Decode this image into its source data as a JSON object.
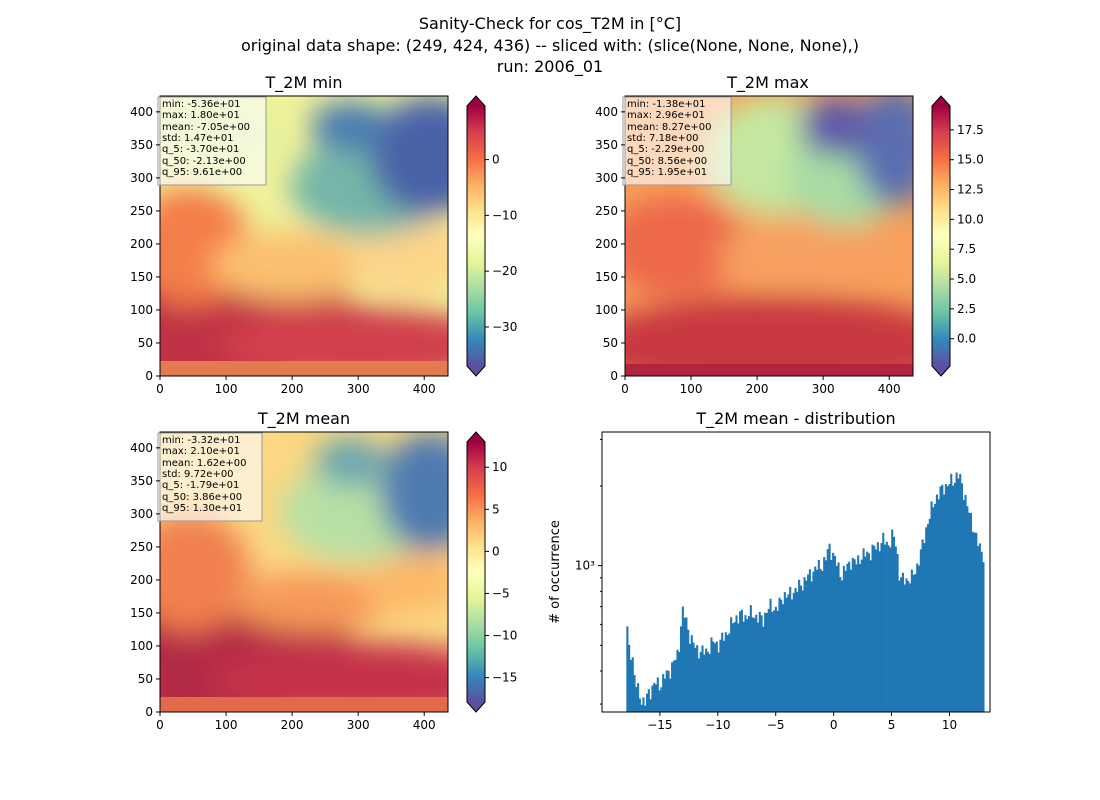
{
  "figure": {
    "title_lines": [
      "Sanity-Check for cos_T2M in [°C]",
      "original data shape: (249, 424, 436) -- sliced with: (slice(None, None, None),)",
      "run: 2006_01"
    ]
  },
  "chart_data": [
    {
      "type": "heatmap",
      "title": "T_2M min",
      "xlim": [
        0,
        436
      ],
      "ylim": [
        0,
        424
      ],
      "xticks": [
        "0",
        "100",
        "200",
        "300",
        "400"
      ],
      "yticks": [
        "0",
        "50",
        "100",
        "150",
        "200",
        "250",
        "300",
        "350",
        "400"
      ],
      "colorbar": {
        "cmap": "Spectral_r",
        "range": [
          -37.0,
          9.61
        ],
        "ticks": [
          "−30",
          "−20",
          "−10",
          "0"
        ],
        "extend": "both"
      },
      "stats": [
        "min: -5.36e+01",
        "max: 1.80e+01",
        "mean: -7.05e+00",
        "std: 1.47e+01",
        "q_5: -3.70e+01",
        "q_50: -2.13e+00",
        "q_95: 9.61e+00"
      ]
    },
    {
      "type": "heatmap",
      "title": "T_2M max",
      "xlim": [
        0,
        436
      ],
      "ylim": [
        0,
        424
      ],
      "xticks": [
        "0",
        "100",
        "200",
        "300",
        "400"
      ],
      "yticks": [
        "0",
        "50",
        "100",
        "150",
        "200",
        "250",
        "300",
        "350",
        "400"
      ],
      "colorbar": {
        "cmap": "Spectral_r",
        "range": [
          -2.29,
          19.5
        ],
        "ticks": [
          "0.0",
          "2.5",
          "5.0",
          "7.5",
          "10.0",
          "12.5",
          "15.0",
          "17.5"
        ],
        "extend": "both"
      },
      "stats": [
        "min: -1.38e+01",
        "max: 2.96e+01",
        "mean: 8.27e+00",
        "std: 7.18e+00",
        "q_5: -2.29e+00",
        "q_50: 8.56e+00",
        "q_95: 1.95e+01"
      ]
    },
    {
      "type": "heatmap",
      "title": "T_2M mean",
      "xlim": [
        0,
        436
      ],
      "ylim": [
        0,
        424
      ],
      "xticks": [
        "0",
        "100",
        "200",
        "300",
        "400"
      ],
      "yticks": [
        "0",
        "50",
        "100",
        "150",
        "200",
        "250",
        "300",
        "350",
        "400"
      ],
      "colorbar": {
        "cmap": "Spectral_r",
        "range": [
          -17.9,
          13.0
        ],
        "ticks": [
          "−15",
          "−10",
          "−5",
          "0",
          "5",
          "10"
        ],
        "extend": "both"
      },
      "stats": [
        "min: -3.32e+01",
        "max: 2.10e+01",
        "mean: 1.62e+00",
        "std: 9.72e+00",
        "q_5: -1.79e+01",
        "q_50: 3.86e+00",
        "q_95: 1.30e+01"
      ]
    },
    {
      "type": "bar",
      "title": "T_2M mean - distribution",
      "ylabel": "# of occurrence",
      "yscale": "log",
      "ylim": [
        280,
        3200
      ],
      "xlim": [
        -20,
        13.5
      ],
      "xticks": [
        "−15",
        "−10",
        "−5",
        "0",
        "5",
        "10"
      ],
      "ytick_label": "10³",
      "color": "#1f77b4",
      "bin_range": [
        -17.9,
        13.0
      ],
      "keypoints": [
        [
          -17.9,
          640
        ],
        [
          -17.7,
          480
        ],
        [
          -17.4,
          470
        ],
        [
          -17.2,
          380
        ],
        [
          -17.0,
          345
        ],
        [
          -16.6,
          315
        ],
        [
          -16.3,
          300
        ],
        [
          -16.0,
          330
        ],
        [
          -15.7,
          345
        ],
        [
          -15.4,
          360
        ],
        [
          -15.0,
          355
        ],
        [
          -14.6,
          380
        ],
        [
          -14.2,
          400
        ],
        [
          -13.8,
          430
        ],
        [
          -13.4,
          470
        ],
        [
          -13.1,
          670
        ],
        [
          -12.8,
          640
        ],
        [
          -12.5,
          560
        ],
        [
          -12.2,
          510
        ],
        [
          -11.8,
          485
        ],
        [
          -11.4,
          470
        ],
        [
          -11.0,
          475
        ],
        [
          -10.6,
          500
        ],
        [
          -10.3,
          520
        ],
        [
          -10.0,
          500
        ],
        [
          -9.6,
          530
        ],
        [
          -9.2,
          560
        ],
        [
          -8.8,
          600
        ],
        [
          -8.4,
          640
        ],
        [
          -8.0,
          650
        ],
        [
          -7.6,
          640
        ],
        [
          -7.3,
          660
        ],
        [
          -6.9,
          650
        ],
        [
          -6.5,
          640
        ],
        [
          -6.1,
          620
        ],
        [
          -5.8,
          680
        ],
        [
          -5.4,
          700
        ],
        [
          -5.0,
          690
        ],
        [
          -4.6,
          720
        ],
        [
          -4.3,
          780
        ],
        [
          -3.9,
          770
        ],
        [
          -3.5,
          800
        ],
        [
          -3.1,
          820
        ],
        [
          -2.7,
          860
        ],
        [
          -2.3,
          900
        ],
        [
          -1.9,
          940
        ],
        [
          -1.5,
          980
        ],
        [
          -1.1,
          1000
        ],
        [
          -0.7,
          1050
        ],
        [
          -0.4,
          1180
        ],
        [
          -0.1,
          1120
        ],
        [
          0.3,
          1000
        ],
        [
          0.7,
          920
        ],
        [
          1.1,
          980
        ],
        [
          1.5,
          1050
        ],
        [
          1.9,
          1020
        ],
        [
          2.3,
          1080
        ],
        [
          2.7,
          1100
        ],
        [
          3.1,
          1120
        ],
        [
          3.5,
          1160
        ],
        [
          3.9,
          1200
        ],
        [
          4.3,
          1250
        ],
        [
          4.7,
          1200
        ],
        [
          5.1,
          1300
        ],
        [
          5.4,
          1200
        ],
        [
          5.7,
          900
        ],
        [
          6.0,
          880
        ],
        [
          6.4,
          890
        ],
        [
          6.8,
          900
        ],
        [
          7.2,
          1000
        ],
        [
          7.6,
          1150
        ],
        [
          8.0,
          1400
        ],
        [
          8.4,
          1600
        ],
        [
          8.8,
          1800
        ],
        [
          9.2,
          1900
        ],
        [
          9.6,
          2000
        ],
        [
          10.0,
          2050
        ],
        [
          10.4,
          2100
        ],
        [
          10.7,
          2250
        ],
        [
          11.0,
          2050
        ],
        [
          11.4,
          1800
        ],
        [
          11.8,
          1500
        ],
        [
          12.2,
          1350
        ],
        [
          12.6,
          1150
        ],
        [
          13.0,
          1100
        ]
      ]
    }
  ]
}
